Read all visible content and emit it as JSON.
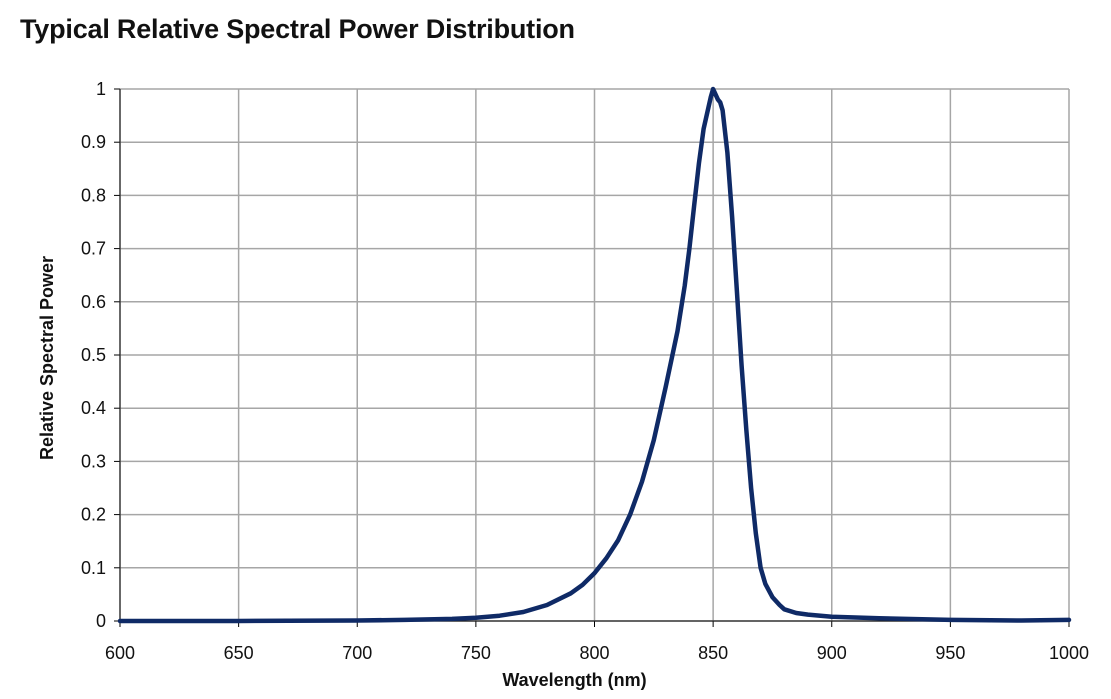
{
  "chart_data": {
    "type": "line",
    "title": "Typical Relative Spectral Power Distribution",
    "xlabel": "Wavelength (nm)",
    "ylabel": "Relative Spectral Power",
    "xlim": [
      600,
      1000
    ],
    "ylim": [
      0,
      1
    ],
    "x_ticks": [
      600,
      650,
      700,
      750,
      800,
      850,
      900,
      950,
      1000
    ],
    "y_ticks": [
      0,
      0.1,
      0.2,
      0.3,
      0.4,
      0.5,
      0.6,
      0.7,
      0.8,
      0.9,
      1
    ],
    "x_tick_labels": [
      "600",
      "650",
      "700",
      "750",
      "800",
      "850",
      "900",
      "950",
      "1000"
    ],
    "y_tick_labels": [
      "0",
      "0.1",
      "0.2",
      "0.3",
      "0.4",
      "0.5",
      "0.6",
      "0.7",
      "0.8",
      "0.9",
      "1"
    ],
    "grid": true,
    "legend": "none",
    "line_color": "#0f2a66",
    "grid_color": "#a6a6a6",
    "series": [
      {
        "x": [
          600,
          650,
          700,
          720,
          740,
          750,
          760,
          770,
          780,
          790,
          795,
          800,
          805,
          810,
          815,
          820,
          825,
          830,
          835,
          838,
          840,
          842,
          844,
          846,
          848,
          849,
          850,
          851,
          852,
          853,
          854,
          856,
          858,
          860,
          862,
          864,
          866,
          868,
          870,
          872,
          875,
          878,
          880,
          885,
          890,
          900,
          920,
          950,
          980,
          1000
        ],
        "y": [
          0,
          0,
          0.001,
          0.002,
          0.004,
          0.006,
          0.01,
          0.017,
          0.03,
          0.052,
          0.068,
          0.09,
          0.118,
          0.152,
          0.2,
          0.262,
          0.34,
          0.44,
          0.545,
          0.63,
          0.7,
          0.78,
          0.86,
          0.925,
          0.965,
          0.985,
          1.0,
          0.99,
          0.98,
          0.975,
          0.96,
          0.88,
          0.76,
          0.62,
          0.48,
          0.36,
          0.25,
          0.165,
          0.1,
          0.07,
          0.045,
          0.03,
          0.022,
          0.015,
          0.012,
          0.008,
          0.005,
          0.002,
          0.001,
          0.002
        ]
      }
    ]
  }
}
